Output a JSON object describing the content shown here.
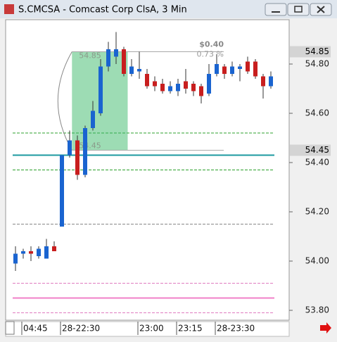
{
  "window": {
    "title": "S.CMCSA - Comcast Corp ClsA, 3 Min"
  },
  "chart_data": {
    "type": "candlestick",
    "categories": [
      null,
      "04:45",
      null,
      null,
      null,
      null,
      "28-22:30",
      null,
      null,
      null,
      null,
      null,
      null,
      null,
      null,
      null,
      "23:00",
      null,
      null,
      null,
      null,
      "23:15",
      null,
      null,
      null,
      null,
      "28-23:30",
      null,
      null,
      null,
      null,
      null,
      null,
      null
    ],
    "open": [
      53.99,
      54.03,
      54.04,
      54.02,
      54.01,
      54.06,
      54.14,
      54.43,
      54.49,
      54.35,
      54.54,
      54.6,
      54.79,
      54.83,
      54.86,
      54.76,
      54.77,
      54.76,
      54.73,
      54.72,
      54.69,
      54.69,
      54.73,
      54.72,
      54.71,
      54.68,
      54.76,
      54.79,
      54.76,
      54.78,
      54.81,
      54.81,
      54.75,
      54.71
    ],
    "high": [
      54.06,
      54.05,
      54.06,
      54.06,
      54.09,
      54.08,
      54.43,
      54.53,
      54.51,
      54.55,
      54.65,
      54.82,
      54.89,
      54.93,
      54.87,
      54.82,
      54.85,
      54.78,
      54.75,
      54.74,
      54.73,
      54.74,
      54.78,
      54.73,
      54.72,
      54.8,
      54.84,
      54.8,
      54.81,
      54.8,
      54.83,
      54.82,
      54.76,
      54.77
    ],
    "low": [
      53.96,
      54.01,
      54.0,
      54.01,
      54.01,
      54.04,
      54.14,
      54.42,
      54.33,
      54.34,
      54.53,
      54.59,
      54.77,
      54.8,
      54.75,
      54.75,
      54.74,
      54.7,
      54.69,
      54.68,
      54.68,
      54.67,
      54.68,
      54.67,
      54.64,
      54.67,
      54.75,
      54.74,
      54.75,
      54.73,
      54.76,
      54.74,
      54.66,
      54.7
    ],
    "close": [
      54.03,
      54.04,
      54.03,
      54.05,
      54.06,
      54.04,
      54.43,
      54.49,
      54.35,
      54.54,
      54.61,
      54.79,
      54.86,
      54.86,
      54.76,
      54.79,
      54.78,
      54.71,
      54.71,
      54.69,
      54.71,
      54.72,
      54.7,
      54.69,
      54.67,
      54.76,
      54.8,
      54.76,
      54.79,
      54.79,
      54.77,
      54.75,
      54.71,
      54.75
    ],
    "up_color": "#1a64d0",
    "down_color": "#c81e1e",
    "ylim": [
      53.76,
      54.98
    ],
    "yticks": [
      {
        "value": 53.8,
        "label": "53.80"
      },
      {
        "value": 54.0,
        "label": "54.00"
      },
      {
        "value": 54.2,
        "label": "54.20"
      },
      {
        "value": 54.4,
        "label": "54.40"
      },
      {
        "value": 54.6,
        "label": "54.60"
      },
      {
        "value": 54.8,
        "label": "54.80"
      }
    ],
    "price_tags": [
      54.85,
      54.45
    ],
    "levels": [
      {
        "value": 54.52,
        "color": "#2ca02c",
        "style": "dashed"
      },
      {
        "value": 54.43,
        "color": "#1c9aa0",
        "style": "solid"
      },
      {
        "value": 54.37,
        "color": "#2ca02c",
        "style": "dashed"
      },
      {
        "value": 54.15,
        "color": "#888888",
        "style": "dashed"
      },
      {
        "value": 53.91,
        "color": "#e07cc0",
        "style": "dashed"
      },
      {
        "value": 53.85,
        "color": "#f080c8",
        "style": "solid"
      },
      {
        "value": 53.79,
        "color": "#e07cc0",
        "style": "dashed"
      }
    ],
    "measure": {
      "high": 54.85,
      "low": 54.45,
      "change_label": "$0.40",
      "percent_label": "0.73 %"
    }
  }
}
